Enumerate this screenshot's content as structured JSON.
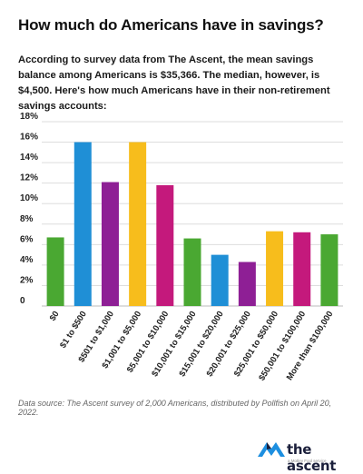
{
  "title": "How much do Americans have in savings?",
  "intro": "According to survey data from The Ascent, the mean savings balance among Americans is $35,366. The median, however, is $4,500. Here's how much Americans have in their non-retirement savings accounts:",
  "source": "Data source: The Ascent survey of 2,000 Americans, distributed by Pollfish on April 20, 2022.",
  "logo": {
    "name": "the ascent",
    "tagline": "a Motley Fool service"
  },
  "colors": {
    "green": "#4aa832",
    "blue": "#1f8fd6",
    "purple": "#8e1f95",
    "yellow": "#f7bd1c",
    "magenta": "#c4197c",
    "grid": "#dddddd",
    "logo_blue": "#1d8fe0",
    "logo_navy": "#1b1f3b"
  },
  "chart_data": {
    "type": "bar",
    "categories": [
      "$0",
      "$1 to $500",
      "$501 to $1,000",
      "$1,001 to $5,000",
      "$5,001 to $10,000",
      "$10,001 to $15,000",
      "$15,001 to $20,000",
      "$20,001 to $25,000",
      "$25,001 to $50,000",
      "$50,001 to $100,000",
      "More than $100,000"
    ],
    "values": [
      6.7,
      16.0,
      12.1,
      16.0,
      11.8,
      6.6,
      5.0,
      4.3,
      7.3,
      7.2,
      7.0
    ],
    "bar_colors": [
      "#4aa832",
      "#1f8fd6",
      "#8e1f95",
      "#f7bd1c",
      "#c4197c",
      "#4aa832",
      "#1f8fd6",
      "#8e1f95",
      "#f7bd1c",
      "#c4197c",
      "#4aa832"
    ],
    "yticks": [
      "0",
      "2%",
      "4%",
      "6%",
      "8%",
      "10%",
      "12%",
      "14%",
      "16%",
      "18%"
    ],
    "ylim": [
      0,
      18
    ],
    "title": "",
    "xlabel": "",
    "ylabel": "",
    "grid": true
  }
}
